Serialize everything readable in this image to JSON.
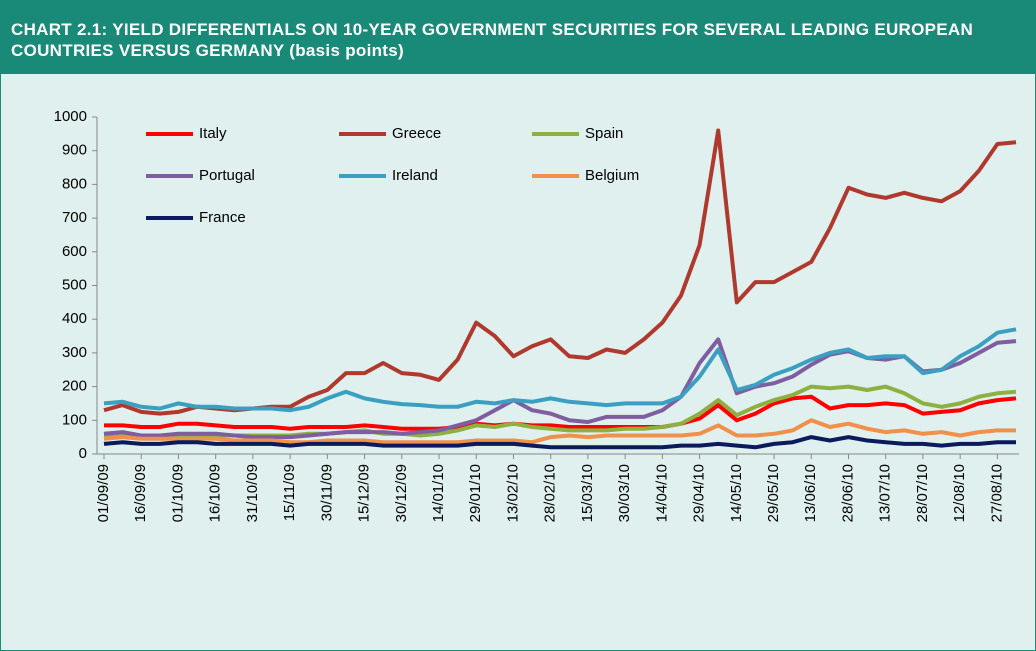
{
  "chart_data": {
    "type": "line",
    "title": "CHART 2.1: YIELD DIFFERENTIALS ON 10-YEAR GOVERNMENT SECURITIES FOR SEVERAL LEADING EUROPEAN COUNTRIES VERSUS GERMANY (basis points)",
    "categories": [
      "01/09/09",
      null,
      "16/09/09",
      null,
      "01/10/09",
      null,
      "16/10/09",
      null,
      "31/10/09",
      null,
      "15/11/09",
      null,
      "30/11/09",
      null,
      "15/12/09",
      null,
      "30/12/09",
      null,
      "14/01/10",
      null,
      "29/01/10",
      null,
      "13/02/10",
      null,
      "28/02/10",
      null,
      "15/03/10",
      null,
      "30/03/10",
      null,
      "14/04/10",
      null,
      "29/04/10",
      null,
      "14/05/10",
      null,
      "29/05/10",
      null,
      "13/06/10",
      null,
      "28/06/10",
      null,
      "13/07/10",
      null,
      "28/07/10",
      null,
      "12/08/10",
      null,
      "27/08/10",
      null
    ],
    "series": [
      {
        "name": "Italy",
        "color": "#ff0000",
        "values": [
          85,
          85,
          80,
          80,
          90,
          90,
          85,
          80,
          80,
          80,
          75,
          80,
          80,
          80,
          85,
          80,
          75,
          75,
          75,
          80,
          90,
          85,
          90,
          85,
          85,
          80,
          80,
          80,
          80,
          80,
          80,
          90,
          105,
          145,
          100,
          120,
          150,
          165,
          170,
          135,
          145,
          145,
          150,
          145,
          120,
          125,
          130,
          150,
          160,
          165
        ]
      },
      {
        "name": "Greece",
        "color": "#b0392e",
        "values": [
          130,
          145,
          125,
          120,
          125,
          140,
          135,
          130,
          135,
          140,
          140,
          170,
          190,
          240,
          240,
          270,
          240,
          235,
          220,
          280,
          390,
          350,
          290,
          320,
          340,
          290,
          285,
          310,
          300,
          340,
          390,
          470,
          620,
          960,
          450,
          510,
          510,
          540,
          570,
          670,
          790,
          770,
          760,
          775,
          760,
          750,
          780,
          840,
          920,
          925
        ]
      },
      {
        "name": "Spain",
        "color": "#8db040",
        "values": [
          55,
          60,
          55,
          55,
          55,
          55,
          55,
          55,
          55,
          55,
          55,
          60,
          60,
          65,
          70,
          60,
          60,
          55,
          60,
          70,
          85,
          80,
          90,
          80,
          75,
          70,
          70,
          70,
          75,
          75,
          80,
          90,
          120,
          160,
          115,
          140,
          160,
          175,
          200,
          195,
          200,
          190,
          200,
          180,
          150,
          140,
          150,
          170,
          180,
          185
        ]
      },
      {
        "name": "Portugal",
        "color": "#7f5da0",
        "values": [
          60,
          65,
          55,
          55,
          60,
          60,
          60,
          55,
          50,
          50,
          50,
          55,
          60,
          65,
          65,
          65,
          60,
          65,
          70,
          85,
          100,
          130,
          160,
          130,
          120,
          100,
          95,
          110,
          110,
          110,
          130,
          170,
          270,
          340,
          180,
          200,
          210,
          230,
          265,
          295,
          305,
          285,
          280,
          290,
          245,
          250,
          270,
          300,
          330,
          335
        ]
      },
      {
        "name": "Ireland",
        "color": "#3a9fc0",
        "values": [
          150,
          155,
          140,
          135,
          150,
          140,
          140,
          135,
          135,
          135,
          130,
          140,
          165,
          185,
          165,
          155,
          148,
          145,
          140,
          140,
          155,
          150,
          160,
          155,
          165,
          155,
          150,
          145,
          150,
          150,
          150,
          170,
          230,
          310,
          190,
          205,
          235,
          255,
          280,
          300,
          310,
          285,
          290,
          290,
          240,
          250,
          290,
          320,
          360,
          370
        ]
      },
      {
        "name": "Belgium",
        "color": "#f0904a",
        "values": [
          45,
          50,
          45,
          45,
          45,
          45,
          45,
          40,
          40,
          40,
          35,
          35,
          40,
          40,
          40,
          35,
          35,
          35,
          35,
          35,
          40,
          40,
          40,
          35,
          50,
          55,
          50,
          55,
          55,
          55,
          55,
          55,
          60,
          85,
          55,
          55,
          60,
          70,
          100,
          80,
          90,
          75,
          65,
          70,
          60,
          65,
          55,
          65,
          70,
          70
        ]
      },
      {
        "name": "France",
        "color": "#0a1a5c",
        "values": [
          30,
          35,
          30,
          30,
          35,
          35,
          30,
          30,
          30,
          30,
          25,
          30,
          30,
          30,
          30,
          25,
          25,
          25,
          25,
          25,
          30,
          30,
          30,
          25,
          20,
          20,
          20,
          20,
          20,
          20,
          20,
          25,
          25,
          30,
          25,
          20,
          30,
          35,
          50,
          40,
          50,
          40,
          35,
          30,
          30,
          25,
          30,
          30,
          35,
          35
        ]
      }
    ],
    "ylim": [
      0,
      1000
    ],
    "yticks": [
      0,
      100,
      200,
      300,
      400,
      500,
      600,
      700,
      800,
      900,
      1000
    ],
    "legend": "upper left"
  }
}
